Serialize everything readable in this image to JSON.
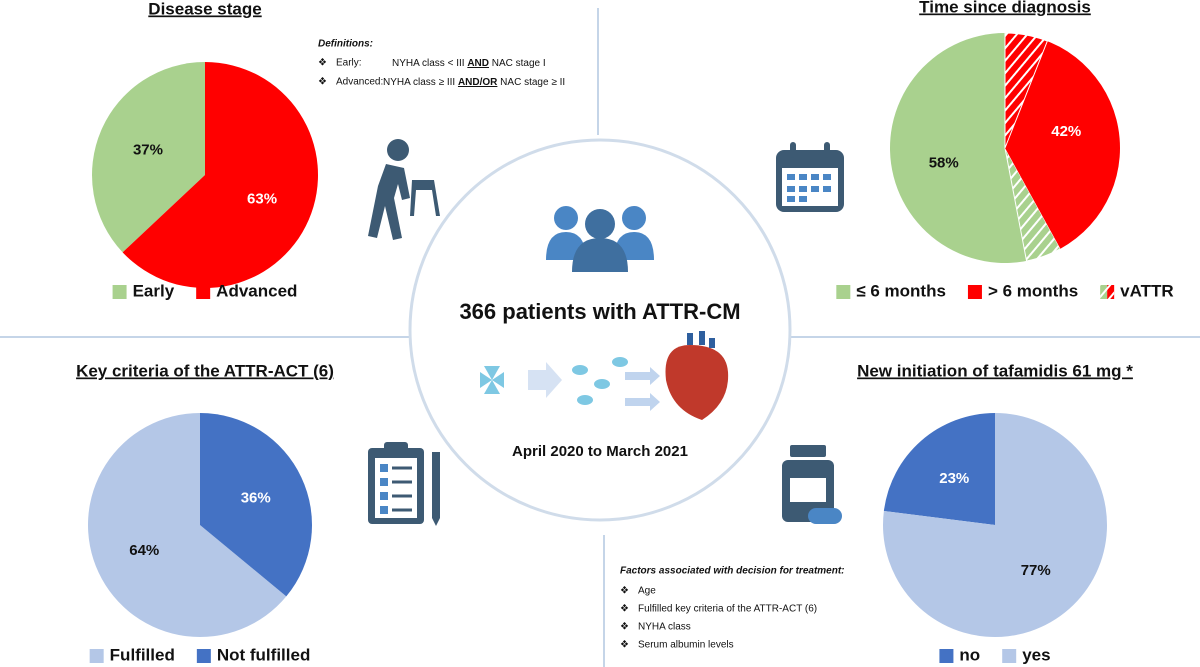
{
  "chart_data": [
    {
      "type": "pie",
      "title": "Disease stage",
      "categories": [
        "Early",
        "Advanced"
      ],
      "values": [
        37,
        63
      ],
      "value_labels": [
        "37%",
        "63%"
      ],
      "colors": [
        "#a9d18e",
        "#ff0000"
      ]
    },
    {
      "type": "pie",
      "title": "Time since diagnosis",
      "categories": [
        "≤ 6 months",
        "> 6 months"
      ],
      "values": [
        58,
        42
      ],
      "value_labels": [
        "58%",
        "42%"
      ],
      "colors": [
        "#a9d18e",
        "#ff0000"
      ],
      "hatched": {
        "name": "vATTR",
        "values": [
          5,
          6
        ]
      }
    },
    {
      "type": "pie",
      "title": "Key criteria of the ATTR-ACT (6)",
      "categories": [
        "Fulfilled",
        "Not fulfilled"
      ],
      "values": [
        64,
        36
      ],
      "value_labels": [
        "64%",
        "36%"
      ],
      "colors": [
        "#b4c7e7",
        "#4472c4"
      ]
    },
    {
      "type": "pie",
      "title": "New initiation of tafamidis 61 mg *",
      "categories": [
        "no",
        "yes"
      ],
      "values": [
        23,
        77
      ],
      "value_labels": [
        "23%",
        "77%"
      ],
      "colors": [
        "#4472c4",
        "#b4c7e7"
      ]
    }
  ],
  "center": {
    "title": "366 patients with ATTR-CM",
    "period": "April 2020 to March 2021"
  },
  "definitions": {
    "title": "Definitions:",
    "items": [
      {
        "label": "Early:",
        "parts": [
          "NYHA class < III ",
          "AND",
          " NAC stage I"
        ]
      },
      {
        "label": "Advanced:",
        "parts": [
          "NYHA class ≥ III ",
          "AND/OR",
          " NAC stage ≥ II"
        ]
      }
    ]
  },
  "factors": {
    "title": "Factors associated with decision for treatment:",
    "items": [
      "Age",
      "Fulfilled key criteria of the ATTR-ACT (6)",
      "NYHA class",
      "Serum albumin levels"
    ]
  }
}
